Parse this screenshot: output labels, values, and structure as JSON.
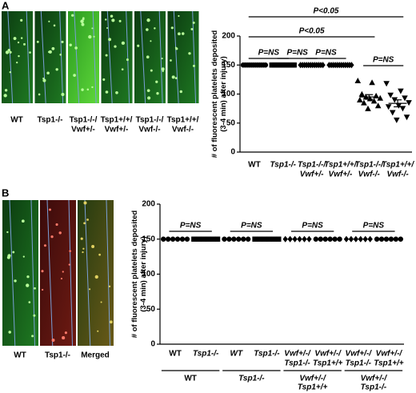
{
  "figure": {
    "panel_labels": [
      "A",
      "B"
    ],
    "images_a": [
      [
        "WT"
      ],
      [
        "Tsp1-/-"
      ],
      [
        "Tsp1-/-/",
        "Vwf+/-"
      ],
      [
        "Tsp1+/+/",
        "Vwf+/-"
      ],
      [
        "Tsp1-/-/",
        "Vwf-/-"
      ],
      [
        "Tsp1+/+/",
        "Vwf-/-"
      ]
    ],
    "images_b": [
      "WT",
      "Tsp1-/-",
      "Merged"
    ]
  },
  "chart_data": [
    {
      "type": "scatter",
      "ylabel": [
        "# of fluorescent platelets deposited",
        "(3-4 min) after injury)"
      ],
      "categories": [
        [
          "WT"
        ],
        [
          "Tsp1-/-"
        ],
        [
          "Tsp1-/-/",
          "Vwf+/-"
        ],
        [
          "Tsp1+/+/",
          "Vwf+/-"
        ],
        [
          "Tsp1-/-/",
          "Vwf-/-"
        ],
        [
          "Tsp1+/+/",
          "Vwf-/-"
        ]
      ],
      "series": [
        {
          "marker": "circle",
          "color": "#000000",
          "values": [
            150,
            150,
            150,
            150,
            150,
            150,
            150,
            150,
            150,
            150,
            150,
            150
          ]
        },
        {
          "marker": "square",
          "color": "#000000",
          "values": [
            150,
            150,
            150,
            150,
            150,
            150,
            150,
            150,
            150,
            150,
            150,
            150
          ]
        },
        {
          "marker": "diamond",
          "color": "#000000",
          "values": [
            150,
            150,
            150,
            150,
            150,
            150,
            150,
            150,
            150,
            150,
            150,
            150
          ]
        },
        {
          "marker": "diamond",
          "color": "#000000",
          "values": [
            150,
            150,
            150,
            150,
            150,
            150,
            150,
            150,
            150,
            150,
            150,
            150
          ]
        },
        {
          "marker": "triangle",
          "color": "#000000",
          "values": [
            123,
            120,
            100,
            97,
            95,
            93,
            92,
            90,
            88,
            85,
            80,
            75
          ],
          "mean": 95,
          "sem": 4
        },
        {
          "marker": "triangle-down",
          "color": "#000000",
          "values": [
            118,
            105,
            98,
            93,
            90,
            85,
            80,
            78,
            75,
            68,
            60,
            55
          ],
          "mean": 84,
          "sem": 6
        }
      ],
      "annotations": [
        "P<0.05",
        "P<0.05",
        "P=NS",
        "P=NS",
        "P=NS",
        "P=NS"
      ],
      "ylim": [
        0,
        200
      ],
      "yticks": [
        0,
        50,
        100,
        150,
        200
      ]
    },
    {
      "type": "scatter",
      "ylabel": [
        "# of fluorescent platelets deposited",
        "(3-4 min) after injury)"
      ],
      "categories": [
        [
          "WT"
        ],
        [
          "Tsp1-/-"
        ],
        [
          "WT"
        ],
        [
          "Tsp1-/-"
        ],
        [
          "Vwf+/-/",
          "Tsp1-/-"
        ],
        [
          "Vwf+/-/",
          "Tsp1+/+"
        ],
        [
          "Vwf+/-/",
          "Tsp1-/-"
        ],
        [
          "Vwf+/-/",
          "Tsp1+/+"
        ]
      ],
      "groups": [
        [
          "WT"
        ],
        [
          "Tsp1-/-"
        ],
        [
          "Vwf+/-/",
          "Tsp1+/+"
        ],
        [
          "Vwf+/-/",
          "Tsp1-/-"
        ]
      ],
      "series": [
        {
          "marker": "circle",
          "color": "#000000",
          "values": [
            150,
            150,
            150,
            150,
            150,
            150
          ]
        },
        {
          "marker": "square",
          "color": "#000000",
          "values": [
            150,
            150,
            150,
            150,
            150,
            150
          ]
        },
        {
          "marker": "circle",
          "color": "#000000",
          "values": [
            150,
            150,
            150,
            150,
            150,
            150
          ]
        },
        {
          "marker": "square",
          "color": "#000000",
          "values": [
            150,
            150,
            150,
            150,
            150,
            150
          ]
        },
        {
          "marker": "diamond",
          "color": "#000000",
          "values": [
            150,
            150,
            150,
            150,
            150,
            150
          ]
        },
        {
          "marker": "circle",
          "color": "#000000",
          "values": [
            150,
            150,
            150,
            150,
            150,
            150
          ]
        },
        {
          "marker": "diamond",
          "color": "#000000",
          "values": [
            150,
            150,
            150,
            150,
            150,
            150
          ]
        },
        {
          "marker": "circle",
          "color": "#000000",
          "values": [
            150,
            150,
            150,
            150,
            150,
            150
          ]
        }
      ],
      "annotations": [
        "P=NS",
        "P=NS",
        "P=NS",
        "P=NS"
      ],
      "ylim": [
        0,
        200
      ],
      "yticks": [
        0,
        50,
        100,
        150,
        200
      ]
    }
  ]
}
